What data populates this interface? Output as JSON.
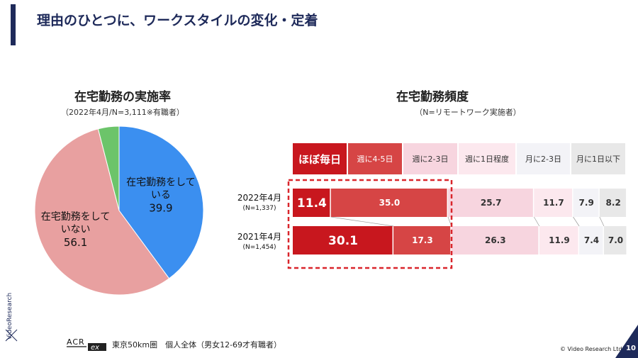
{
  "slide": {
    "title": "理由のひとつに、ワークスタイルの変化・定着",
    "page_number": "10",
    "copyright": "© Video Research Ltd.",
    "side_logo": "VideoResearch",
    "footer_logo": "ACR ex",
    "footer_note": "東京50km圏　個人全体（男女12-69才有職者）"
  },
  "colors": {
    "navy": "#1e2a5a",
    "pie_blue": "#3b8ff0",
    "pie_pink": "#e8a0a0",
    "pie_green": "#6cc46a",
    "highlight_border": "#d9262c"
  },
  "chart_data": [
    {
      "type": "pie",
      "title": "在宅勤務の実施率",
      "subtitle": "（2022年4月/N=3,111※有職者）",
      "slices": [
        {
          "label": "在宅勤務をしている",
          "label_lines": [
            "在宅勤務をして",
            "いる"
          ],
          "value": 39.9,
          "value_text": "39.9",
          "color": "#3b8ff0"
        },
        {
          "label": "在宅勤務をしていない",
          "label_lines": [
            "在宅勤務をして",
            "いない"
          ],
          "value": 56.1,
          "value_text": "56.1",
          "color": "#e8a0a0"
        },
        {
          "label": "",
          "label_lines": [],
          "value": 4.0,
          "value_text": "",
          "color": "#6cc46a"
        }
      ]
    },
    {
      "type": "bar",
      "stacked": true,
      "orientation": "horizontal",
      "title": "在宅勤務頻度",
      "subtitle": "（N=リモートワーク実施者）",
      "legend": [
        {
          "label": "ほぼ毎日",
          "color": "#c8171e",
          "text_color": "#ffffff"
        },
        {
          "label": "週に4-5日",
          "color": "#d64545",
          "text_color": "#ffffff"
        },
        {
          "label": "週に2-3日",
          "color": "#f7d5df",
          "text_color": "#333333"
        },
        {
          "label": "週に1日程度",
          "color": "#fce8ee",
          "text_color": "#333333"
        },
        {
          "label": "月に2-3日",
          "color": "#f3f3f7",
          "text_color": "#333333"
        },
        {
          "label": "月に1日以下",
          "color": "#e8e8e8",
          "text_color": "#333333"
        }
      ],
      "categories": [
        {
          "label": "2022年4月",
          "n": "(N=1,337)"
        },
        {
          "label": "2021年4月",
          "n": "(N=1,454)"
        }
      ],
      "series": [
        {
          "name": "ほぼ毎日",
          "values": [
            11.4,
            30.1
          ],
          "value_texts": [
            "11.4",
            "30.1"
          ]
        },
        {
          "name": "週に4-5日",
          "values": [
            35.0,
            17.3
          ],
          "value_texts": [
            "35.0",
            "17.3"
          ]
        },
        {
          "name": "週に2-3日",
          "values": [
            25.7,
            26.3
          ],
          "value_texts": [
            "25.7",
            "26.3"
          ]
        },
        {
          "name": "週に1日程度",
          "values": [
            11.7,
            11.9
          ],
          "value_texts": [
            "11.7",
            "11.9"
          ]
        },
        {
          "name": "月に2-3日",
          "values": [
            7.9,
            7.4
          ],
          "value_texts": [
            "7.9",
            "7.4"
          ]
        },
        {
          "name": "月に1日以下",
          "values": [
            8.2,
            7.0
          ],
          "value_texts": [
            "8.2",
            "7.0"
          ]
        }
      ]
    }
  ]
}
